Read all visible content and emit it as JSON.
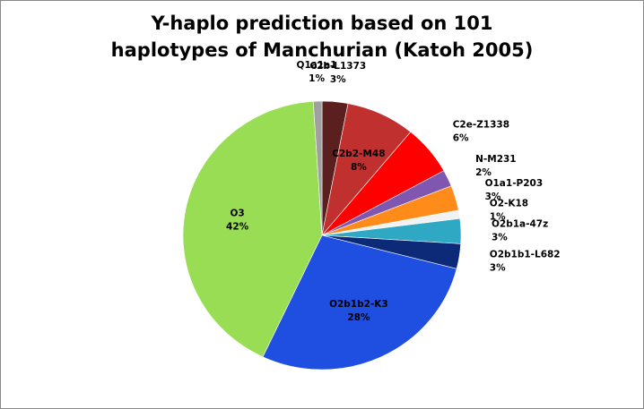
{
  "chart_data": {
    "type": "pie",
    "title": "Y-haplo prediction based on 101 haplotypes of Manchurian (Katoh 2005)",
    "categories": [
      "C2b-L1373",
      "C2b2-M48",
      "C2e-Z1338",
      "N-M231",
      "O1a1-P203",
      "O2-K18",
      "O2b1a-47z",
      "O2b1b1-L682",
      "O2b1b2-K3",
      "O3",
      "Q1a1a1"
    ],
    "values": [
      3,
      8,
      6,
      2,
      3,
      1,
      3,
      3,
      28,
      42,
      1
    ],
    "value_labels": [
      "3%",
      "8%",
      "6%",
      "2%",
      "3%",
      "1%",
      "3%",
      "3%",
      "28%",
      "42%",
      "1%"
    ],
    "colors": [
      "#5c1f1f",
      "#c0302f",
      "#ff0000",
      "#7f56b0",
      "#ff8c1a",
      "#f2f2f2",
      "#2fa8c4",
      "#0d2a78",
      "#1f4fe0",
      "#99dd55",
      "#a0a0a0"
    ]
  }
}
